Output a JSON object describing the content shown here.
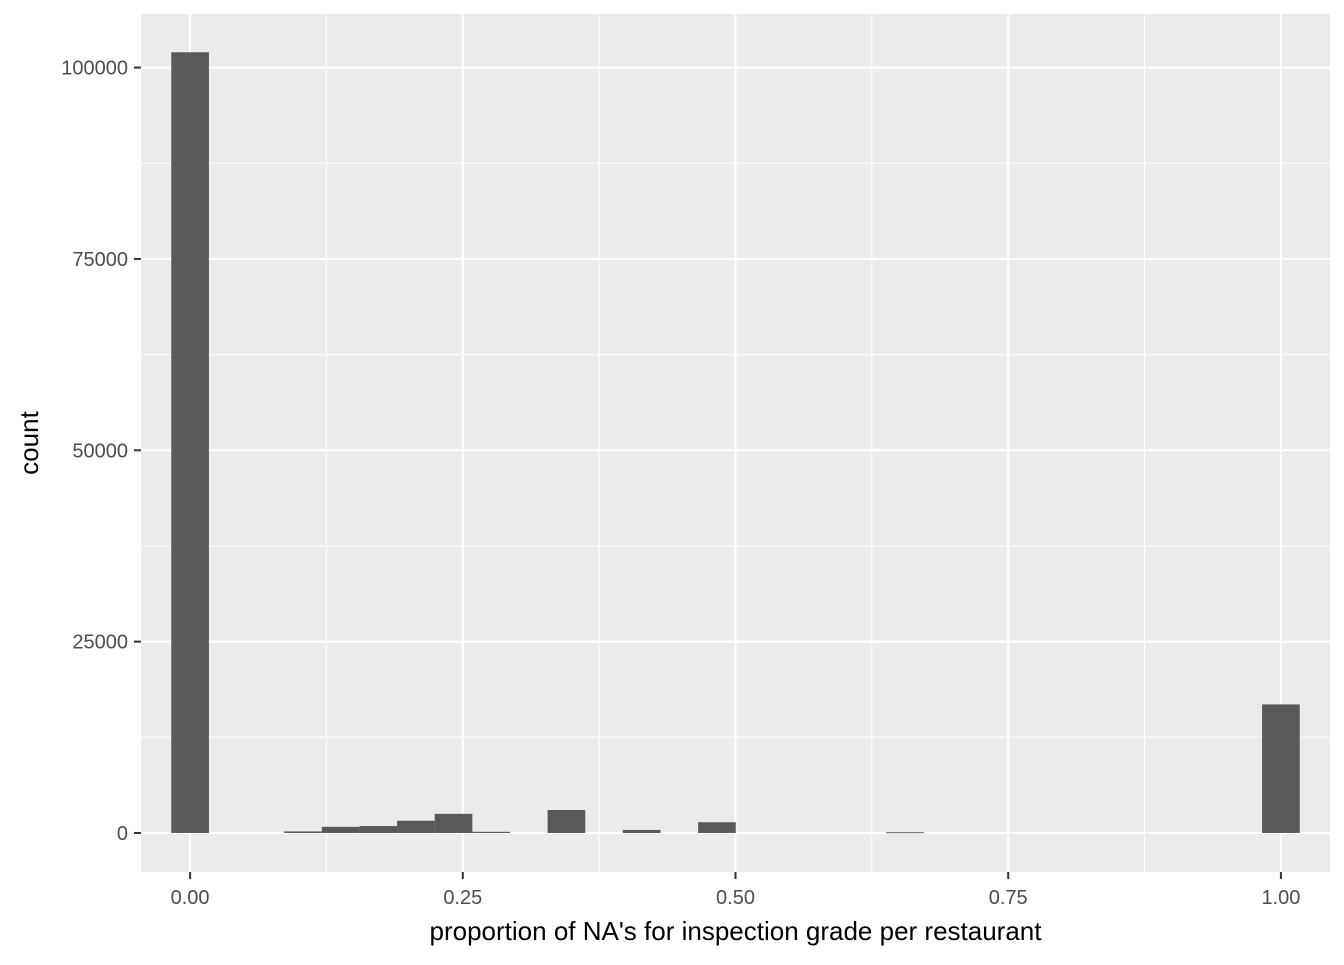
{
  "chart_data": {
    "type": "bar",
    "title": "",
    "xlabel": "proportion of NA's for inspection grade per restaurant",
    "ylabel": "count",
    "xlim": [
      -0.045,
      1.045
    ],
    "ylim": [
      -5100,
      107000
    ],
    "x_ticks": [
      0,
      0.25,
      0.5,
      0.75,
      1
    ],
    "x_tick_labels": [
      "0.00",
      "0.25",
      "0.50",
      "0.75",
      "1.00"
    ],
    "y_ticks": [
      0,
      25000,
      50000,
      75000,
      100000
    ],
    "y_tick_labels": [
      "0",
      "25000",
      "50000",
      "75000",
      "100000"
    ],
    "bin_width": 0.0345,
    "bins": [
      {
        "x": 0.0,
        "count": 102000
      },
      {
        "x": 0.1035,
        "count": 200
      },
      {
        "x": 0.138,
        "count": 800
      },
      {
        "x": 0.1725,
        "count": 900
      },
      {
        "x": 0.207,
        "count": 1600
      },
      {
        "x": 0.2415,
        "count": 2500
      },
      {
        "x": 0.276,
        "count": 150
      },
      {
        "x": 0.345,
        "count": 3000
      },
      {
        "x": 0.414,
        "count": 400
      },
      {
        "x": 0.483,
        "count": 1400
      },
      {
        "x": 0.6555,
        "count": 100
      },
      {
        "x": 1.0,
        "count": 16800
      }
    ],
    "panel_background": "#ebebeb",
    "grid_color": "#ffffff",
    "bar_color": "#595959",
    "grid": true
  }
}
